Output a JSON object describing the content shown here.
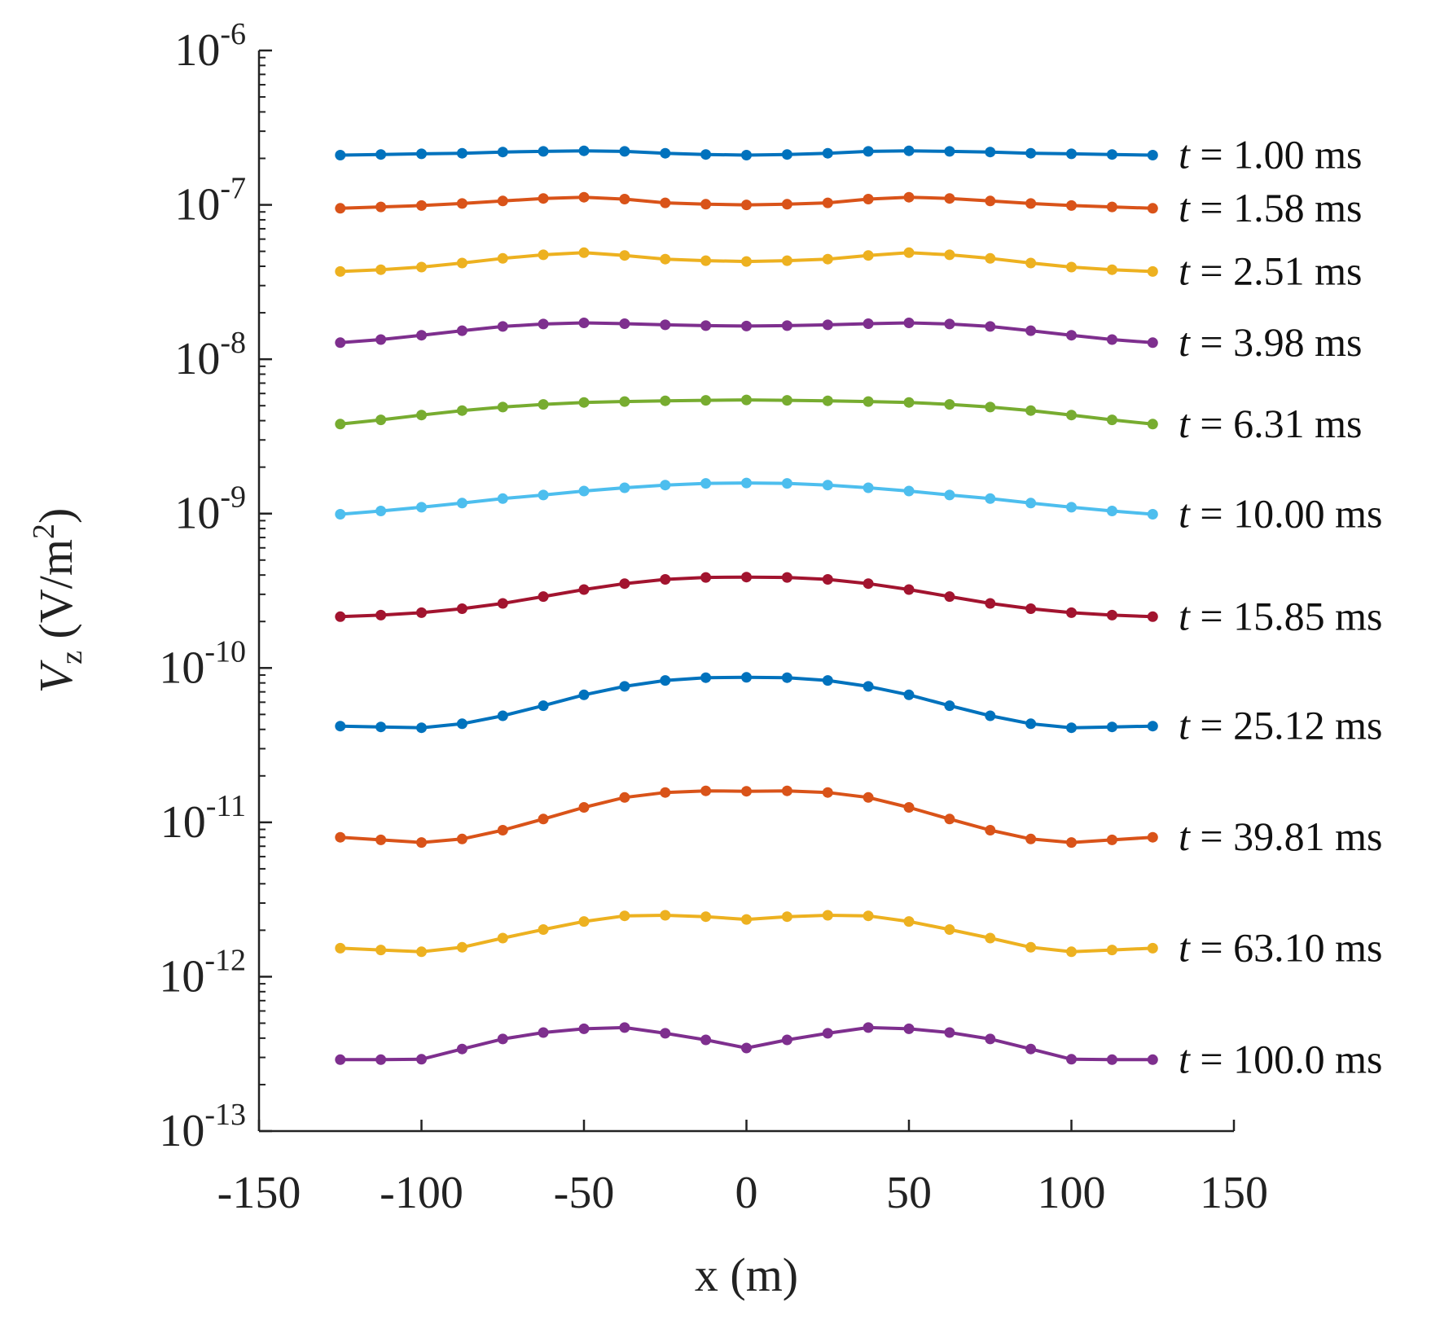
{
  "chart_data": {
    "type": "line",
    "title": "",
    "xlabel": "x (m)",
    "ylabel": {
      "base": "V",
      "sub": "z",
      "units_open": " (V/m",
      "units_sup": "2",
      "units_close": ")"
    },
    "xlim": [
      -150,
      150
    ],
    "ylim_log10": [
      -13,
      -6
    ],
    "y_scale": "log",
    "xticks": [
      -150,
      -100,
      -50,
      0,
      50,
      100,
      150
    ],
    "xtick_labels": [
      "-150",
      "-100",
      "-50",
      "0",
      "50",
      "100",
      "150"
    ],
    "yticks": [
      {
        "base": "10",
        "exp": "-6",
        "log": -6
      },
      {
        "base": "10",
        "exp": "-7",
        "log": -7
      },
      {
        "base": "10",
        "exp": "-8",
        "log": -8
      },
      {
        "base": "10",
        "exp": "-9",
        "log": -9
      },
      {
        "base": "10",
        "exp": "-10",
        "log": -10
      },
      {
        "base": "10",
        "exp": "-11",
        "log": -11
      },
      {
        "base": "10",
        "exp": "-12",
        "log": -12
      },
      {
        "base": "10",
        "exp": "-13",
        "log": -13
      }
    ],
    "grid": false,
    "x": [
      -125,
      -112.5,
      -100,
      -87.5,
      -75,
      -62.5,
      -50,
      -37.5,
      -25,
      -12.5,
      0,
      12.5,
      25,
      37.5,
      50,
      62.5,
      75,
      87.5,
      100,
      112.5,
      125
    ],
    "series": [
      {
        "name": "1.00 ms",
        "label_t": "t",
        "label_rest": " = 1.00 ms",
        "color": "#0072BD",
        "values": [
          2.1e-07,
          2.12e-07,
          2.14e-07,
          2.16e-07,
          2.2e-07,
          2.22e-07,
          2.24e-07,
          2.22e-07,
          2.16e-07,
          2.12e-07,
          2.1e-07,
          2.12e-07,
          2.16e-07,
          2.22e-07,
          2.24e-07,
          2.22e-07,
          2.2e-07,
          2.16e-07,
          2.14e-07,
          2.12e-07,
          2.1e-07
        ]
      },
      {
        "name": "1.58 ms",
        "label_t": "t",
        "label_rest": " = 1.58 ms",
        "color": "#D95319",
        "values": [
          9.5e-08,
          9.7e-08,
          9.9e-08,
          1.02e-07,
          1.06e-07,
          1.1e-07,
          1.12e-07,
          1.09e-07,
          1.03e-07,
          1.01e-07,
          1e-07,
          1.01e-07,
          1.03e-07,
          1.09e-07,
          1.12e-07,
          1.1e-07,
          1.06e-07,
          1.02e-07,
          9.9e-08,
          9.7e-08,
          9.5e-08
        ]
      },
      {
        "name": "2.51 ms",
        "label_t": "t",
        "label_rest": " = 2.51 ms",
        "color": "#EDB120",
        "values": [
          3.7e-08,
          3.8e-08,
          3.95e-08,
          4.2e-08,
          4.5e-08,
          4.75e-08,
          4.9e-08,
          4.7e-08,
          4.45e-08,
          4.35e-08,
          4.3e-08,
          4.35e-08,
          4.45e-08,
          4.7e-08,
          4.9e-08,
          4.75e-08,
          4.5e-08,
          4.2e-08,
          3.95e-08,
          3.8e-08,
          3.7e-08
        ]
      },
      {
        "name": "3.98 ms",
        "label_t": "t",
        "label_rest": " = 3.98 ms",
        "color": "#7E2F8E",
        "values": [
          1.28e-08,
          1.34e-08,
          1.43e-08,
          1.53e-08,
          1.63e-08,
          1.69e-08,
          1.72e-08,
          1.7e-08,
          1.67e-08,
          1.65e-08,
          1.64e-08,
          1.65e-08,
          1.67e-08,
          1.7e-08,
          1.72e-08,
          1.69e-08,
          1.63e-08,
          1.53e-08,
          1.43e-08,
          1.34e-08,
          1.28e-08
        ]
      },
      {
        "name": "6.31 ms",
        "label_t": "t",
        "label_rest": " = 6.31 ms",
        "color": "#77AC30",
        "values": [
          3.8e-09,
          4.05e-09,
          4.35e-09,
          4.65e-09,
          4.9e-09,
          5.1e-09,
          5.25e-09,
          5.32e-09,
          5.38e-09,
          5.42e-09,
          5.45e-09,
          5.42e-09,
          5.38e-09,
          5.32e-09,
          5.25e-09,
          5.1e-09,
          4.9e-09,
          4.65e-09,
          4.35e-09,
          4.05e-09,
          3.8e-09
        ]
      },
      {
        "name": "10.00 ms",
        "label_t": "t",
        "label_rest": " = 10.00 ms",
        "color": "#4DBEEE",
        "values": [
          9.9e-10,
          1.04e-09,
          1.1e-09,
          1.17e-09,
          1.25e-09,
          1.32e-09,
          1.4e-09,
          1.47e-09,
          1.53e-09,
          1.57e-09,
          1.58e-09,
          1.57e-09,
          1.53e-09,
          1.47e-09,
          1.4e-09,
          1.32e-09,
          1.25e-09,
          1.17e-09,
          1.1e-09,
          1.04e-09,
          9.9e-10
        ]
      },
      {
        "name": "15.85 ms",
        "label_t": "t",
        "label_rest": " = 15.85 ms",
        "color": "#A2142F",
        "values": [
          2.15e-10,
          2.2e-10,
          2.28e-10,
          2.42e-10,
          2.62e-10,
          2.9e-10,
          3.22e-10,
          3.52e-10,
          3.75e-10,
          3.86e-10,
          3.88e-10,
          3.86e-10,
          3.75e-10,
          3.52e-10,
          3.22e-10,
          2.9e-10,
          2.62e-10,
          2.42e-10,
          2.28e-10,
          2.2e-10,
          2.15e-10
        ]
      },
      {
        "name": "25.12 ms",
        "label_t": "t",
        "label_rest": " = 25.12 ms",
        "color": "#0072BD",
        "values": [
          4.2e-11,
          4.15e-11,
          4.1e-11,
          4.35e-11,
          4.9e-11,
          5.7e-11,
          6.7e-11,
          7.6e-11,
          8.3e-11,
          8.65e-11,
          8.7e-11,
          8.65e-11,
          8.3e-11,
          7.6e-11,
          6.7e-11,
          5.7e-11,
          4.9e-11,
          4.35e-11,
          4.1e-11,
          4.15e-11,
          4.2e-11
        ]
      },
      {
        "name": "39.81 ms",
        "label_t": "t",
        "label_rest": " = 39.81 ms",
        "color": "#D95319",
        "values": [
          8e-12,
          7.7e-12,
          7.4e-12,
          7.8e-12,
          8.9e-12,
          1.05e-11,
          1.25e-11,
          1.45e-11,
          1.56e-11,
          1.6e-11,
          1.59e-11,
          1.6e-11,
          1.56e-11,
          1.45e-11,
          1.25e-11,
          1.05e-11,
          8.9e-12,
          7.8e-12,
          7.4e-12,
          7.7e-12,
          8e-12
        ]
      },
      {
        "name": "63.10 ms",
        "label_t": "t",
        "label_rest": " = 63.10 ms",
        "color": "#EDB120",
        "values": [
          1.53e-12,
          1.49e-12,
          1.45e-12,
          1.55e-12,
          1.78e-12,
          2.02e-12,
          2.28e-12,
          2.48e-12,
          2.5e-12,
          2.45e-12,
          2.35e-12,
          2.45e-12,
          2.5e-12,
          2.48e-12,
          2.28e-12,
          2.02e-12,
          1.78e-12,
          1.55e-12,
          1.45e-12,
          1.49e-12,
          1.53e-12
        ]
      },
      {
        "name": "100.0 ms",
        "label_t": "t",
        "label_rest": " = 100.0 ms",
        "color": "#7E2F8E",
        "values": [
          2.9e-13,
          2.9e-13,
          2.92e-13,
          3.4e-13,
          3.95e-13,
          4.35e-13,
          4.6e-13,
          4.68e-13,
          4.3e-13,
          3.9e-13,
          3.45e-13,
          3.9e-13,
          4.3e-13,
          4.68e-13,
          4.6e-13,
          4.35e-13,
          3.95e-13,
          3.4e-13,
          2.92e-13,
          2.9e-13,
          2.9e-13
        ]
      }
    ]
  }
}
